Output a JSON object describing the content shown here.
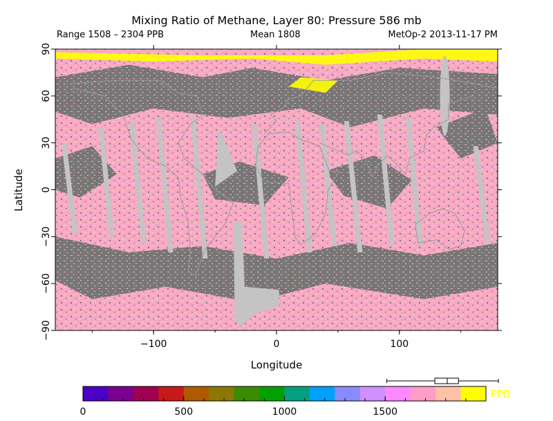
{
  "header": {
    "title": "Mixing Ratio of Methane, Layer 80: Pressure 586 mb",
    "range": "Range 1508 – 2304 PPB",
    "mean": "Mean 1808",
    "satellite": "MetOp-2 2013-11-17 PM"
  },
  "axes": {
    "xlabel": "Longitude",
    "ylabel": "Latitude",
    "xticks": [
      {
        "value": -100,
        "label": "−100"
      },
      {
        "value": 0,
        "label": "0"
      },
      {
        "value": 100,
        "label": "100"
      }
    ],
    "yticks": [
      {
        "value": 90,
        "label": "90"
      },
      {
        "value": 60,
        "label": "60"
      },
      {
        "value": 30,
        "label": "30"
      },
      {
        "value": 0,
        "label": "0"
      },
      {
        "value": -30,
        "label": "−30"
      },
      {
        "value": -60,
        "label": "−60"
      },
      {
        "value": -90,
        "label": "−90"
      }
    ],
    "xlim": [
      -180,
      180
    ],
    "ylim": [
      -90,
      90
    ]
  },
  "colorbar": {
    "unit": "PPB",
    "range": [
      0,
      2000
    ],
    "ticks": [
      {
        "value": 0,
        "label": "0"
      },
      {
        "value": 500,
        "label": "500"
      },
      {
        "value": 1000,
        "label": "1000"
      },
      {
        "value": 1500,
        "label": "1500"
      }
    ],
    "colors": [
      "#4b00c8",
      "#7a0090",
      "#a00050",
      "#c81818",
      "#b05a00",
      "#8a7800",
      "#3a8c00",
      "#00a000",
      "#00a080",
      "#00a0ff",
      "#8a8aff",
      "#d090ff",
      "#ff88ff",
      "#ff9cc8",
      "#ffc0a8",
      "#ffff00"
    ],
    "boxplot": {
      "min": 1508,
      "q1": 1760,
      "median": 1808,
      "q3": 1850,
      "max": 2304
    }
  },
  "colors": {
    "nodata": "#777777",
    "gap": "#c4c4c4",
    "pink_low": "#f7a8c8",
    "pink_high": "#ffbcb0",
    "yellow": "#ffff00",
    "coast": "#9a9a9a"
  }
}
